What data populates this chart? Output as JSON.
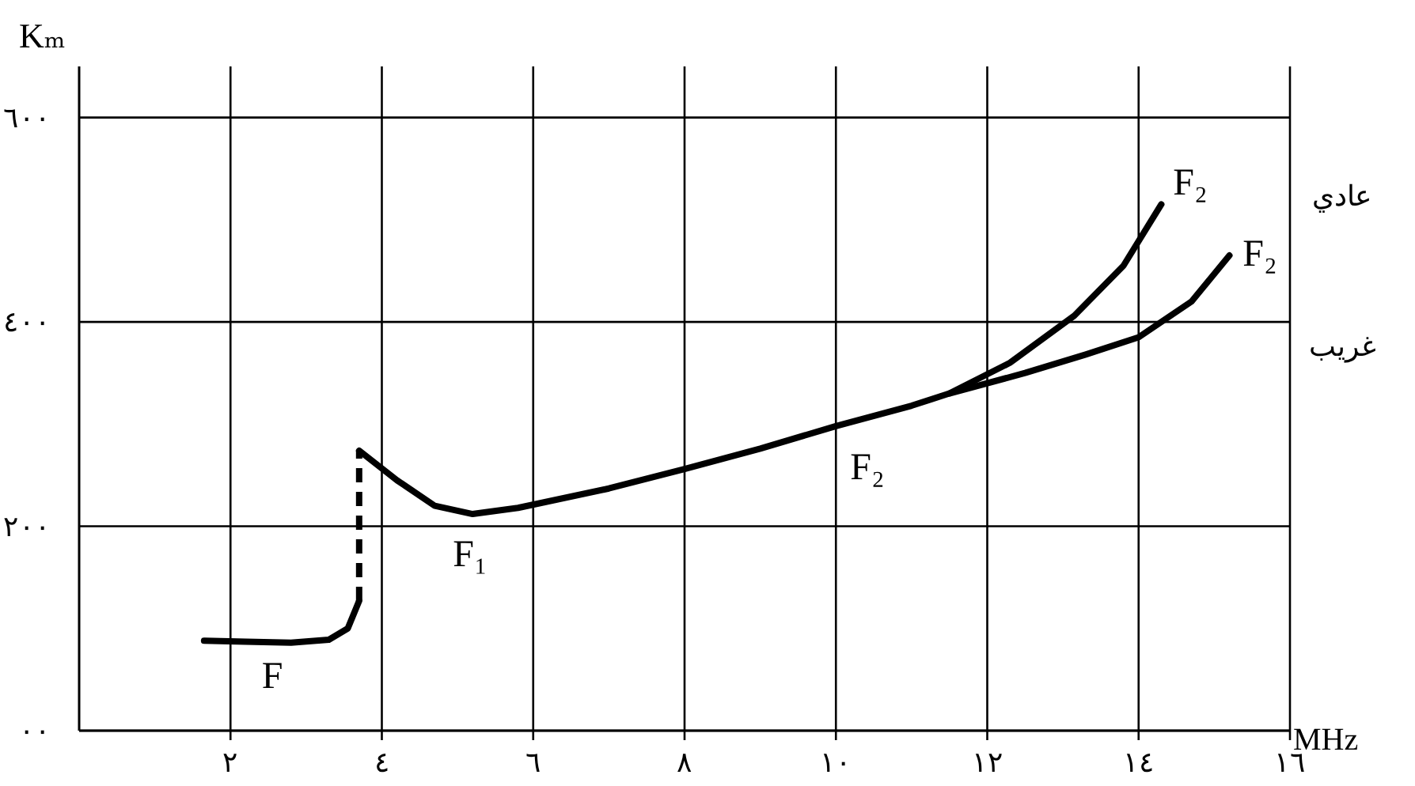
{
  "chart_data": {
    "type": "line",
    "xlabel": "MHz",
    "ylabel": "Kₘ",
    "xlim": [
      0,
      16
    ],
    "ylim": [
      0,
      650
    ],
    "xticks": [
      {
        "value": 2,
        "label": "٢"
      },
      {
        "value": 4,
        "label": "٤"
      },
      {
        "value": 6,
        "label": "٦"
      },
      {
        "value": 8,
        "label": "٨"
      },
      {
        "value": 10,
        "label": "١٠"
      },
      {
        "value": 12,
        "label": "١٢"
      },
      {
        "value": 14,
        "label": "١٤"
      },
      {
        "value": 16,
        "label": "١٦"
      }
    ],
    "yticks": [
      {
        "value": 0,
        "label": "٠٠"
      },
      {
        "value": 200,
        "label": "٢٠٠"
      },
      {
        "value": 400,
        "label": "٤٠٠"
      },
      {
        "value": 600,
        "label": "٦٠٠"
      }
    ],
    "grid": true,
    "series": [
      {
        "color": "#000000",
        "line_style": "solid",
        "x": [
          1.65,
          2.2,
          2.8,
          3.3,
          3.55,
          3.7
        ],
        "values": [
          88,
          87,
          86,
          89,
          100,
          127
        ]
      },
      {
        "color": "#000000",
        "line_style": "dashed",
        "x": [
          3.7,
          3.7
        ],
        "values": [
          127,
          274
        ]
      },
      {
        "color": "#000000",
        "line_style": "solid",
        "x": [
          3.7,
          4.2,
          4.7,
          5.2,
          5.8,
          7.0,
          8.0,
          9.0,
          10.0,
          11.0,
          11.5,
          12.3,
          13.15,
          13.8,
          14.3
        ],
        "values": [
          274,
          245,
          220,
          212,
          218,
          237,
          256,
          276,
          298,
          318,
          330,
          360,
          406,
          455,
          515
        ]
      },
      {
        "color": "#000000",
        "line_style": "solid",
        "x": [
          11.5,
          12.5,
          13.3,
          14.0,
          14.7,
          15.2
        ],
        "values": [
          330,
          350,
          368,
          385,
          420,
          465
        ]
      }
    ],
    "annotations": [
      "F",
      "F₁",
      "F₂",
      "F₂",
      "F₂",
      "عادي",
      "غريب"
    ]
  }
}
